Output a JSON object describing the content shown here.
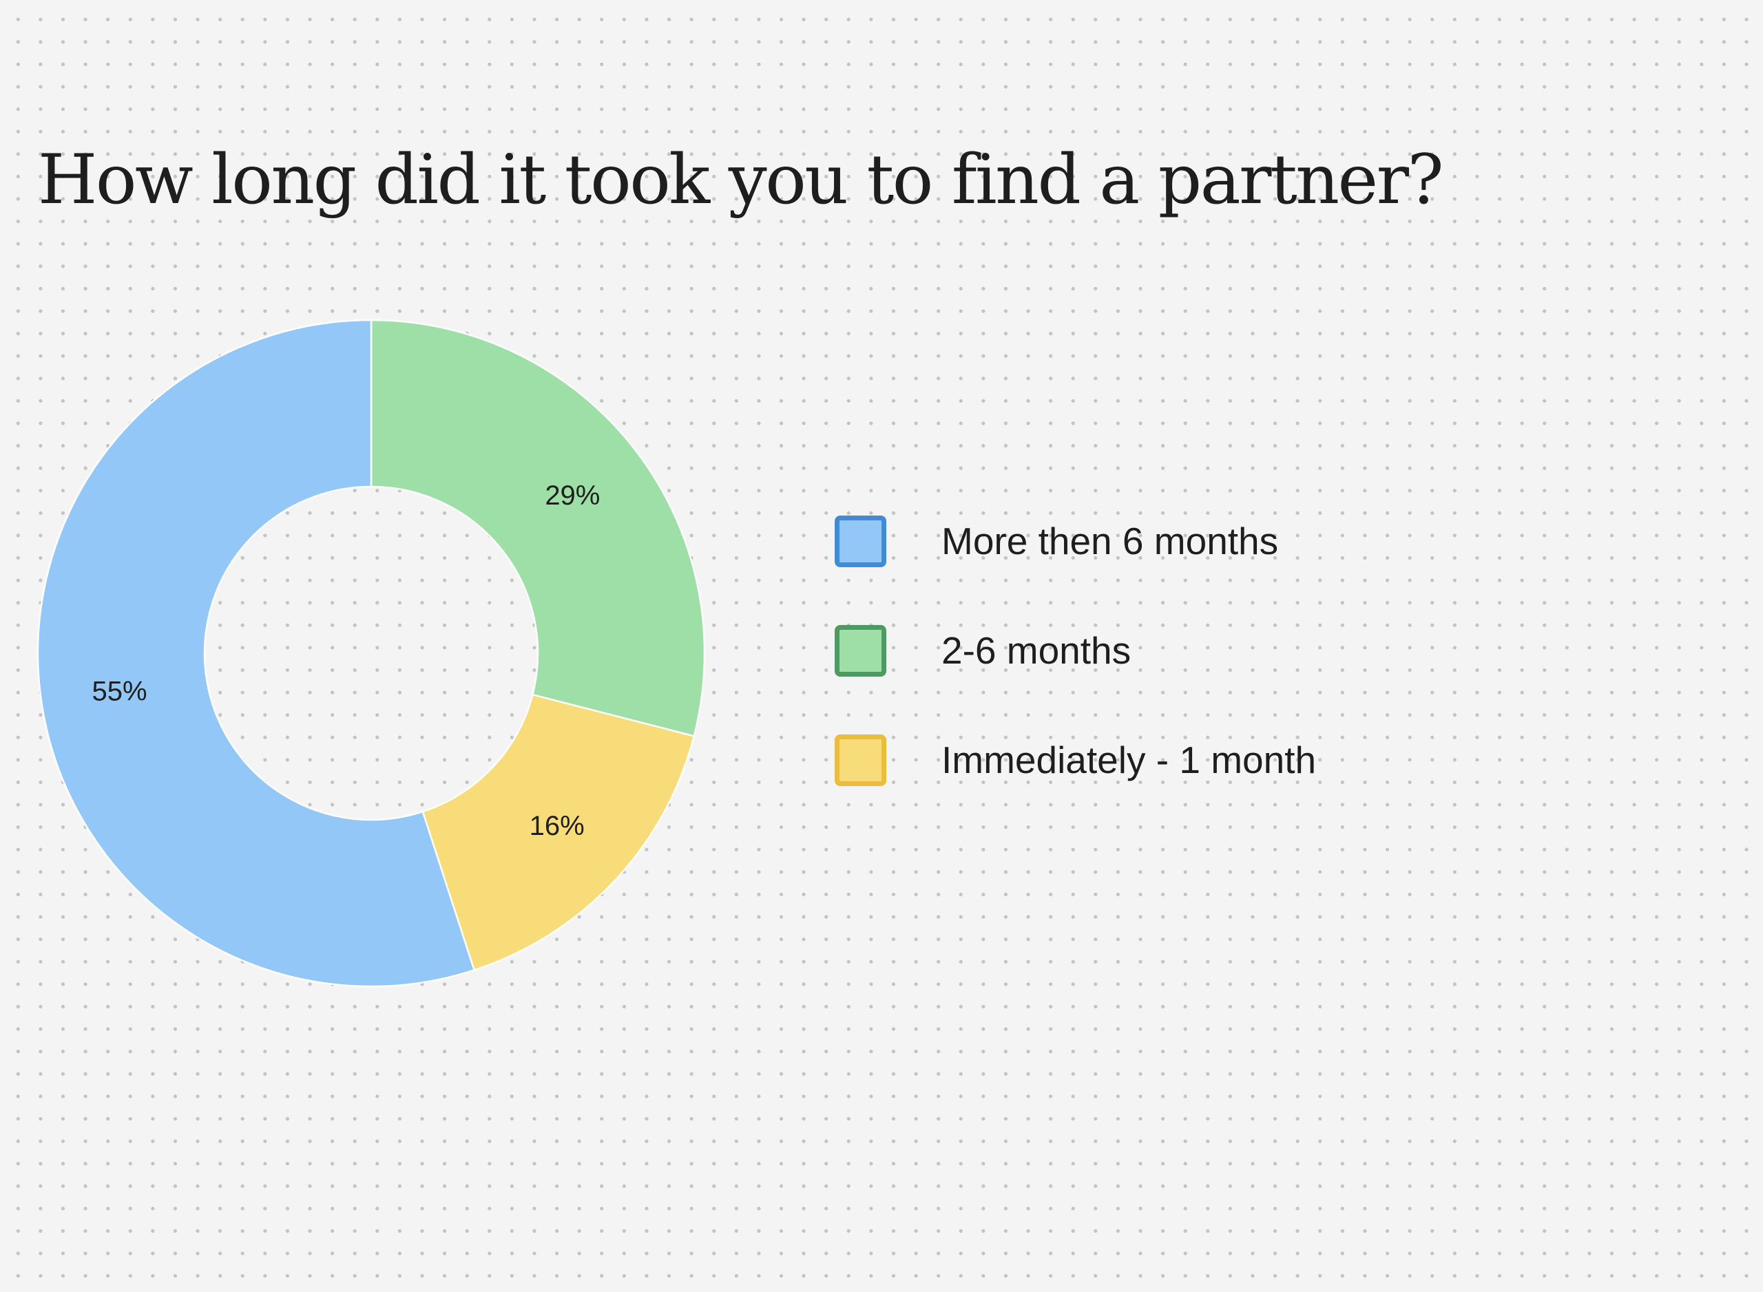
{
  "colors": {
    "background": "#f4f4f4",
    "more_than_6_months": {
      "fill": "#92c7f7",
      "border": "#3f8bd6"
    },
    "two_to_6_months": {
      "fill": "#9ddfa7",
      "border": "#4f9a63"
    },
    "immediately_1_month": {
      "fill": "#f8dc7a",
      "border": "#ebbd3e"
    }
  },
  "chart_data": {
    "type": "pie",
    "variant": "donut",
    "title": "How long did it took you to find a partner?",
    "start_angle": "12 o'clock",
    "direction": "clockwise",
    "legend_position": "right",
    "slices": [
      {
        "label": "2-6 months",
        "value": 29,
        "value_label": "29%",
        "color": "#9ddfa7",
        "border_color": "#4f9a63"
      },
      {
        "label": "Immediately - 1 month",
        "value": 16,
        "value_label": "16%",
        "color": "#f8dc7a",
        "border_color": "#ebbd3e"
      },
      {
        "label": "More then 6 months",
        "value": 55,
        "value_label": "55%",
        "color": "#92c7f7",
        "border_color": "#3f8bd6"
      }
    ]
  },
  "legend": {
    "items": [
      {
        "label": "More then 6 months",
        "color": "#92c7f7",
        "border_color": "#3f8bd6"
      },
      {
        "label": "2-6 months",
        "color": "#9ddfa7",
        "border_color": "#4f9a63"
      },
      {
        "label": "Immediately - 1 month",
        "color": "#f8dc7a",
        "border_color": "#ebbd3e"
      }
    ]
  }
}
